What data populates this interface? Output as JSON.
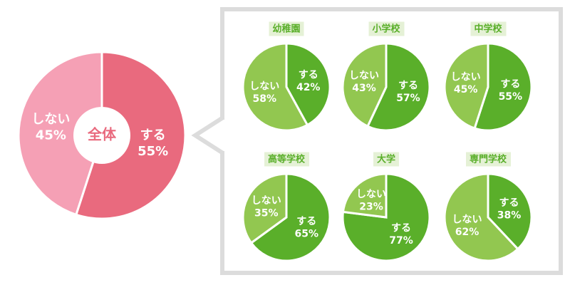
{
  "chart_data": [
    {
      "type": "donut",
      "title": "全体",
      "categories": [
        "する",
        "しない"
      ],
      "values": [
        55,
        45
      ],
      "value_labels": [
        "55%",
        "45%"
      ],
      "colors": [
        "#e96a7e",
        "#f5a0b5"
      ]
    },
    {
      "type": "pie",
      "title": "幼稚園",
      "categories": [
        "する",
        "しない"
      ],
      "values": [
        42,
        58
      ],
      "value_labels": [
        "42%",
        "58%"
      ],
      "colors": [
        "#5aaf2a",
        "#92c750"
      ]
    },
    {
      "type": "pie",
      "title": "小学校",
      "categories": [
        "する",
        "しない"
      ],
      "values": [
        57,
        43
      ],
      "value_labels": [
        "57%",
        "43%"
      ],
      "colors": [
        "#5aaf2a",
        "#92c750"
      ]
    },
    {
      "type": "pie",
      "title": "中学校",
      "categories": [
        "する",
        "しない"
      ],
      "values": [
        55,
        45
      ],
      "value_labels": [
        "55%",
        "45%"
      ],
      "colors": [
        "#5aaf2a",
        "#92c750"
      ]
    },
    {
      "type": "pie",
      "title": "高等学校",
      "categories": [
        "する",
        "しない"
      ],
      "values": [
        65,
        35
      ],
      "value_labels": [
        "65%",
        "35%"
      ],
      "colors": [
        "#5aaf2a",
        "#92c750"
      ]
    },
    {
      "type": "pie",
      "title": "大学",
      "categories": [
        "する",
        "しない"
      ],
      "values": [
        77,
        23
      ],
      "value_labels": [
        "77%",
        "23%"
      ],
      "colors": [
        "#5aaf2a",
        "#92c750"
      ]
    },
    {
      "type": "pie",
      "title": "専門学校",
      "categories": [
        "する",
        "しない"
      ],
      "values": [
        38,
        62
      ],
      "value_labels": [
        "38%",
        "62%"
      ],
      "colors": [
        "#5aaf2a",
        "#92c750"
      ]
    }
  ]
}
